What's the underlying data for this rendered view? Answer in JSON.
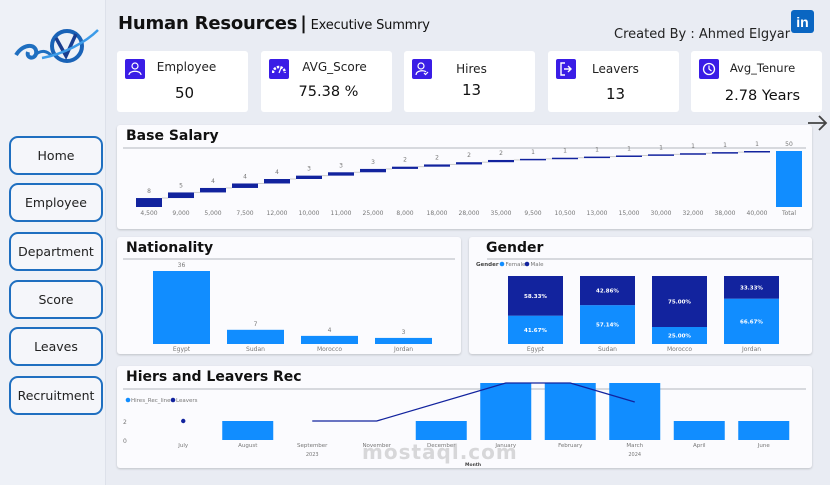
{
  "header": {
    "title": "Human Resources",
    "separator": "|",
    "subtitle": "Executive Summry",
    "created_by": "Created By : Ahmed Elgyar",
    "linkedin_label": "in"
  },
  "sidebar": {
    "items": [
      {
        "label": "Home"
      },
      {
        "label": "Employee"
      },
      {
        "label": "Department"
      },
      {
        "label": "Score"
      },
      {
        "label": "Leaves"
      },
      {
        "label": "Recruitment"
      }
    ]
  },
  "kpis": [
    {
      "label": "Employee",
      "value": "50",
      "icon": "employee-icon"
    },
    {
      "label": "AVG_Score",
      "value": "75.38 %",
      "icon": "gauge-icon"
    },
    {
      "label": "Hires",
      "value": "13",
      "icon": "user-check-icon"
    },
    {
      "label": "Leavers",
      "value": "13",
      "icon": "exit-icon"
    },
    {
      "label": "Avg_Tenure",
      "value": "2.78 Years",
      "icon": "clock-icon"
    }
  ],
  "colors": {
    "light_blue": "#118dff",
    "dark_blue": "#12239e",
    "icon_purple": "#3a1de6",
    "nav_border": "#1f6fc0"
  },
  "watermark": "mostaql.com",
  "chart_data": [
    {
      "type": "bar",
      "subtype": "waterfall",
      "title": "Base Salary",
      "categories": [
        "4,500",
        "9,000",
        "5,000",
        "7,500",
        "12,000",
        "10,000",
        "11,000",
        "25,000",
        "8,000",
        "18,000",
        "28,000",
        "35,000",
        "9,500",
        "10,500",
        "13,000",
        "15,000",
        "30,000",
        "32,000",
        "38,000",
        "40,000",
        "Total"
      ],
      "values": [
        8,
        5,
        4,
        4,
        4,
        3,
        3,
        3,
        2,
        2,
        2,
        2,
        1,
        1,
        1,
        1,
        1,
        1,
        1,
        1,
        50
      ],
      "ylim": [
        0,
        50
      ]
    },
    {
      "type": "bar",
      "title": "Nationality",
      "categories": [
        "Egypt",
        "Sudan",
        "Morocco",
        "Jordan"
      ],
      "values": [
        36,
        7,
        4,
        3
      ],
      "ylim": [
        0,
        36
      ]
    },
    {
      "type": "bar",
      "subtype": "stacked-100",
      "title": "Gender",
      "legend_title": "Gender",
      "legend_position": "top-left",
      "categories": [
        "Egypt",
        "Sudan",
        "Morocco",
        "Jordan"
      ],
      "series": [
        {
          "name": "Female",
          "values": [
            41.67,
            57.14,
            25.0,
            66.67
          ],
          "labels": [
            "41.67%",
            "57.14%",
            "25.00%",
            "66.67%"
          ]
        },
        {
          "name": "Male",
          "values": [
            58.33,
            42.86,
            75.0,
            33.33
          ],
          "labels": [
            "58.33%",
            "42.86%",
            "75.00%",
            "33.33%"
          ]
        }
      ]
    },
    {
      "type": "bar",
      "subtype": "bar-line-combo",
      "title": "Hiers and Leavers Rec",
      "legend_position": "top-left",
      "xlabel": "Month",
      "categories": [
        "July",
        "August",
        "September",
        "November",
        "December",
        "January",
        "February",
        "March",
        "April",
        "June"
      ],
      "year_labels": [
        {
          "label": "2023",
          "under": "September"
        },
        {
          "label": "2024",
          "under": "March"
        }
      ],
      "yticks": [
        "2",
        "0"
      ],
      "ylim": [
        0,
        3
      ],
      "series": [
        {
          "name": "Hires_Rec_line",
          "kind": "bar",
          "values": [
            null,
            1,
            null,
            null,
            1,
            3,
            3,
            3,
            1,
            1
          ]
        },
        {
          "name": "Leavers",
          "kind": "line",
          "values": [
            1,
            null,
            1,
            1,
            null,
            3,
            3,
            2,
            null,
            null
          ]
        }
      ]
    }
  ]
}
